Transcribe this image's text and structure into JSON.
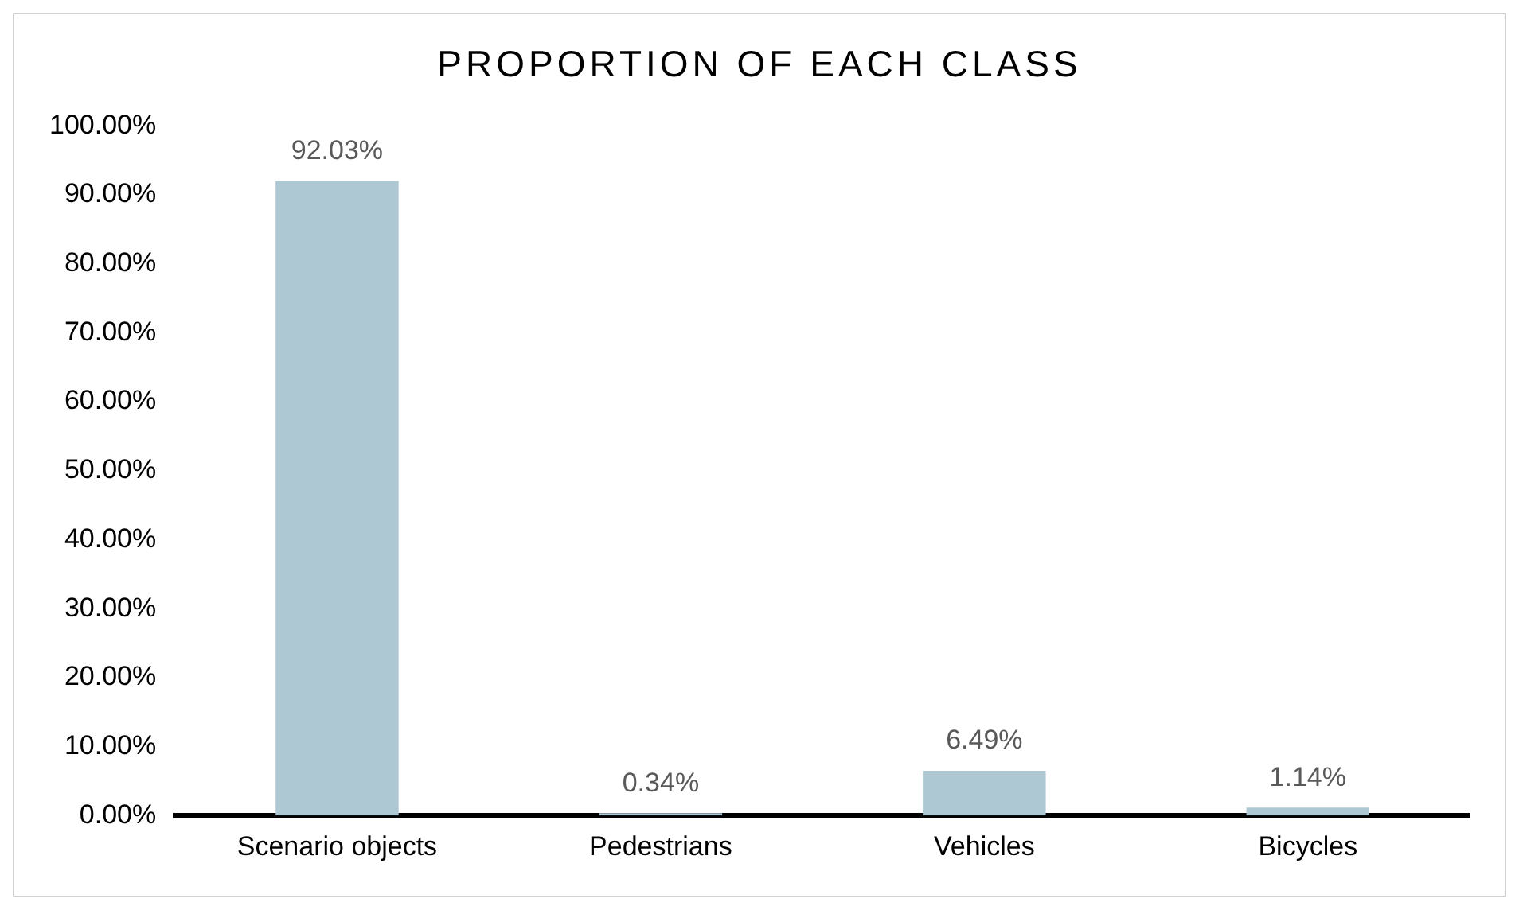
{
  "chart_data": {
    "type": "bar",
    "title": "PROPORTION OF EACH CLASS",
    "categories": [
      "Scenario objects",
      "Pedestrians",
      "Vehicles",
      "Bicycles"
    ],
    "values": [
      92.03,
      0.34,
      6.49,
      1.14
    ],
    "value_labels": [
      "92.03%",
      "0.34%",
      "6.49%",
      "1.14%"
    ],
    "color": "#adc8d3",
    "ylim": [
      0,
      100
    ],
    "yticks": [
      {
        "value": 0,
        "label": "0.00%"
      },
      {
        "value": 10,
        "label": "10.00%"
      },
      {
        "value": 20,
        "label": "20.00%"
      },
      {
        "value": 30,
        "label": "30.00%"
      },
      {
        "value": 40,
        "label": "40.00%"
      },
      {
        "value": 50,
        "label": "50.00%"
      },
      {
        "value": 60,
        "label": "60.00%"
      },
      {
        "value": 70,
        "label": "70.00%"
      },
      {
        "value": 80,
        "label": "80.00%"
      },
      {
        "value": 90,
        "label": "90.00%"
      },
      {
        "value": 100,
        "label": "100.00%"
      }
    ],
    "grid": false,
    "legend": false
  }
}
